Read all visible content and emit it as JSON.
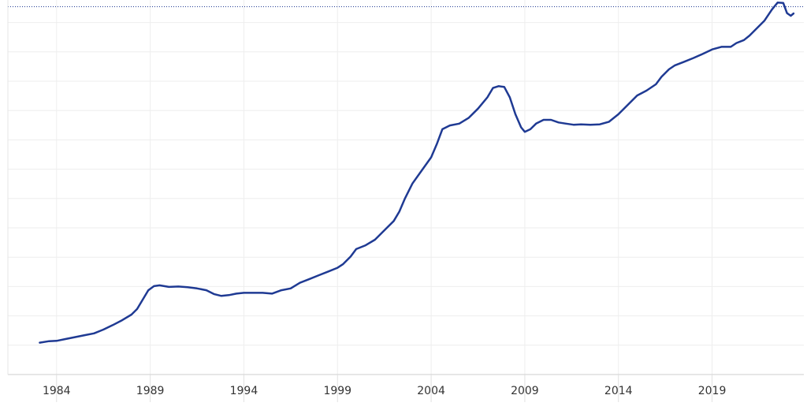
{
  "chart_data": {
    "type": "line",
    "title": "",
    "xlabel": "",
    "ylabel": "",
    "x_ticks": [
      {
        "value": 1984,
        "label": "1984"
      },
      {
        "value": 1989,
        "label": "1989"
      },
      {
        "value": 1994,
        "label": "1994"
      },
      {
        "value": 1999,
        "label": "1999"
      },
      {
        "value": 2004,
        "label": "2004"
      },
      {
        "value": 2009,
        "label": "2009"
      },
      {
        "value": 2014,
        "label": "2014"
      },
      {
        "value": 2019,
        "label": "2019"
      }
    ],
    "xlim": [
      1981.4,
      2023.9
    ],
    "ylim": [
      0,
      100
    ],
    "grid": true,
    "grid_lines_y": 12,
    "reference_line": {
      "value": 98.2,
      "style": "dotted"
    },
    "series": [
      {
        "color": "#1f3a93",
        "points": [
          [
            1983.1,
            8.5
          ],
          [
            1983.6,
            8.9
          ],
          [
            1984.0,
            9.0
          ],
          [
            1984.5,
            9.5
          ],
          [
            1985.0,
            10.0
          ],
          [
            1985.5,
            10.5
          ],
          [
            1986.0,
            11.0
          ],
          [
            1986.5,
            12.0
          ],
          [
            1987.0,
            13.2
          ],
          [
            1987.5,
            14.5
          ],
          [
            1988.0,
            16.0
          ],
          [
            1988.3,
            17.5
          ],
          [
            1988.6,
            20.0
          ],
          [
            1988.9,
            22.5
          ],
          [
            1989.2,
            23.6
          ],
          [
            1989.5,
            23.8
          ],
          [
            1990.0,
            23.4
          ],
          [
            1990.5,
            23.5
          ],
          [
            1991.0,
            23.3
          ],
          [
            1991.5,
            23.0
          ],
          [
            1992.0,
            22.5
          ],
          [
            1992.4,
            21.5
          ],
          [
            1992.8,
            21.0
          ],
          [
            1993.2,
            21.2
          ],
          [
            1993.6,
            21.6
          ],
          [
            1994.0,
            21.8
          ],
          [
            1995.0,
            21.8
          ],
          [
            1995.5,
            21.6
          ],
          [
            1996.0,
            22.5
          ],
          [
            1996.5,
            23.0
          ],
          [
            1997.0,
            24.5
          ],
          [
            1997.5,
            25.5
          ],
          [
            1998.0,
            26.5
          ],
          [
            1998.5,
            27.5
          ],
          [
            1999.0,
            28.5
          ],
          [
            1999.3,
            29.5
          ],
          [
            1999.7,
            31.5
          ],
          [
            2000.0,
            33.5
          ],
          [
            2000.5,
            34.5
          ],
          [
            2001.0,
            36.0
          ],
          [
            2001.5,
            38.5
          ],
          [
            2002.0,
            41.0
          ],
          [
            2002.3,
            43.5
          ],
          [
            2002.6,
            47.0
          ],
          [
            2003.0,
            51.0
          ],
          [
            2003.5,
            54.5
          ],
          [
            2004.0,
            58.0
          ],
          [
            2004.3,
            61.5
          ],
          [
            2004.6,
            65.5
          ],
          [
            2005.0,
            66.5
          ],
          [
            2005.5,
            67.0
          ],
          [
            2006.0,
            68.5
          ],
          [
            2006.5,
            71.0
          ],
          [
            2007.0,
            74.0
          ],
          [
            2007.3,
            76.5
          ],
          [
            2007.6,
            77.0
          ],
          [
            2007.9,
            76.8
          ],
          [
            2008.2,
            74.0
          ],
          [
            2008.5,
            69.5
          ],
          [
            2008.8,
            66.0
          ],
          [
            2009.0,
            64.8
          ],
          [
            2009.3,
            65.5
          ],
          [
            2009.6,
            67.0
          ],
          [
            2010.0,
            68.0
          ],
          [
            2010.4,
            68.0
          ],
          [
            2010.8,
            67.3
          ],
          [
            2011.2,
            67.0
          ],
          [
            2011.6,
            66.7
          ],
          [
            2012.0,
            66.8
          ],
          [
            2012.5,
            66.7
          ],
          [
            2013.0,
            66.8
          ],
          [
            2013.5,
            67.5
          ],
          [
            2014.0,
            69.5
          ],
          [
            2014.5,
            72.0
          ],
          [
            2015.0,
            74.5
          ],
          [
            2015.5,
            75.8
          ],
          [
            2016.0,
            77.5
          ],
          [
            2016.3,
            79.5
          ],
          [
            2016.7,
            81.5
          ],
          [
            2017.0,
            82.5
          ],
          [
            2017.5,
            83.5
          ],
          [
            2018.0,
            84.5
          ],
          [
            2018.5,
            85.6
          ],
          [
            2019.0,
            86.8
          ],
          [
            2019.5,
            87.5
          ],
          [
            2020.0,
            87.5
          ],
          [
            2020.3,
            88.5
          ],
          [
            2020.7,
            89.3
          ],
          [
            2021.0,
            90.5
          ],
          [
            2021.4,
            92.5
          ],
          [
            2021.8,
            94.5
          ],
          [
            2022.2,
            97.5
          ],
          [
            2022.5,
            99.3
          ],
          [
            2022.8,
            99.2
          ],
          [
            2023.0,
            96.5
          ],
          [
            2023.2,
            95.8
          ],
          [
            2023.35,
            96.4
          ]
        ]
      }
    ]
  }
}
